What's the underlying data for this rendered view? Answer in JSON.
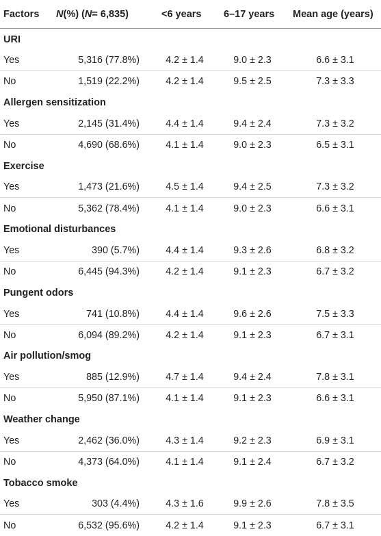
{
  "header": {
    "factors": "Factors",
    "n_italic": "N",
    "n_pct": " (%) (",
    "n_italic2": "N",
    "n_total": " = 6,835)",
    "under6": "<6 years",
    "age6_17": "6–17 years",
    "mean_age": "Mean age (years)"
  },
  "groups": [
    {
      "name": "URI",
      "rows": [
        {
          "label": "Yes",
          "n": "5,316 (77.8%)",
          "under6": "4.2 ± 1.4",
          "age6_17": "9.0 ± 2.3",
          "mean": "6.6 ± 3.1"
        },
        {
          "label": "No",
          "n": "1,519 (22.2%)",
          "under6": "4.2 ± 1.4",
          "age6_17": "9.5 ± 2.5",
          "mean": "7.3 ± 3.3"
        }
      ]
    },
    {
      "name": "Allergen sensitization",
      "rows": [
        {
          "label": "Yes",
          "n": "2,145 (31.4%)",
          "under6": "4.4 ± 1.4",
          "age6_17": "9.4 ± 2.4",
          "mean": "7.3 ± 3.2"
        },
        {
          "label": "No",
          "n": "4,690 (68.6%)",
          "under6": "4.1 ± 1.4",
          "age6_17": "9.0 ± 2.3",
          "mean": "6.5 ± 3.1"
        }
      ]
    },
    {
      "name": "Exercise",
      "rows": [
        {
          "label": "Yes",
          "n": "1,473 (21.6%)",
          "under6": "4.5 ± 1.4",
          "age6_17": "9.4 ± 2.5",
          "mean": "7.3 ± 3.2"
        },
        {
          "label": "No",
          "n": "5,362 (78.4%)",
          "under6": "4.1 ± 1.4",
          "age6_17": "9.0 ± 2.3",
          "mean": "6.6 ± 3.1"
        }
      ]
    },
    {
      "name": "Emotional disturbances",
      "rows": [
        {
          "label": "Yes",
          "n": "390 (5.7%)",
          "under6": "4.4 ± 1.4",
          "age6_17": "9.3 ± 2.6",
          "mean": "6.8 ± 3.2"
        },
        {
          "label": "No",
          "n": "6,445 (94.3%)",
          "under6": "4.2 ± 1.4",
          "age6_17": "9.1 ± 2.3",
          "mean": "6.7 ± 3.2"
        }
      ]
    },
    {
      "name": "Pungent odors",
      "rows": [
        {
          "label": "Yes",
          "n": "741 (10.8%)",
          "under6": "4.4 ± 1.4",
          "age6_17": "9.6 ± 2.6",
          "mean": "7.5 ± 3.3"
        },
        {
          "label": "No",
          "n": "6,094 (89.2%)",
          "under6": "4.2 ± 1.4",
          "age6_17": "9.1 ± 2.3",
          "mean": "6.7 ± 3.1"
        }
      ]
    },
    {
      "name": "Air pollution/smog",
      "rows": [
        {
          "label": "Yes",
          "n": "885 (12.9%)",
          "under6": "4.7 ± 1.4",
          "age6_17": "9.4 ± 2.4",
          "mean": "7.8 ± 3.1"
        },
        {
          "label": "No",
          "n": "5,950 (87.1%)",
          "under6": "4.1 ± 1.4",
          "age6_17": "9.1 ± 2.3",
          "mean": "6.6 ± 3.1"
        }
      ]
    },
    {
      "name": "Weather change",
      "rows": [
        {
          "label": "Yes",
          "n": "2,462 (36.0%)",
          "under6": "4.3 ± 1.4",
          "age6_17": "9.2 ± 2.3",
          "mean": "6.9 ± 3.1"
        },
        {
          "label": "No",
          "n": "4,373 (64.0%)",
          "under6": "4.1 ± 1.4",
          "age6_17": "9.1 ± 2.4",
          "mean": "6.7 ± 3.2"
        }
      ]
    },
    {
      "name": "Tobacco smoke",
      "rows": [
        {
          "label": "Yes",
          "n": "303 (4.4%)",
          "under6": "4.3 ± 1.6",
          "age6_17": "9.9 ± 2.6",
          "mean": "7.8 ± 3.5"
        },
        {
          "label": "No",
          "n": "6,532 (95.6%)",
          "under6": "4.2 ± 1.4",
          "age6_17": "9.1 ± 2.3",
          "mean": "6.7 ± 3.1"
        }
      ]
    }
  ]
}
